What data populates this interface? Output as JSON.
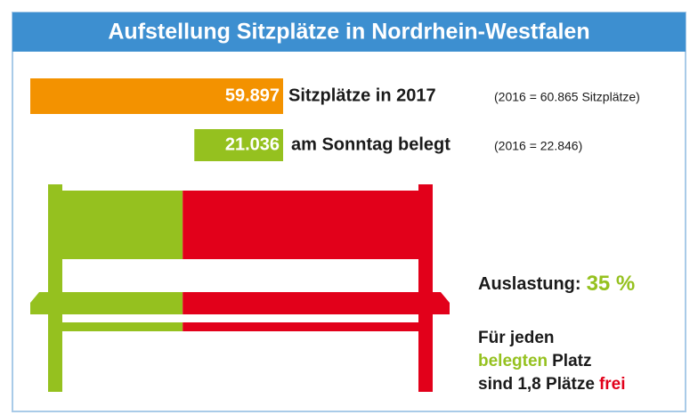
{
  "header": {
    "title": "Aufstellung Sitzplätze in Nordrhein-Westfalen"
  },
  "rows": [
    {
      "value": 59897,
      "value_label": "59.897",
      "label": "Sitzplätze in 2017",
      "note": "(2016 = 60.865 Sitzplätze)",
      "color": "#f39200"
    },
    {
      "value": 21036,
      "value_label": "21.036",
      "label": "am Sonntag belegt",
      "note": "(2016 = 22.846)",
      "color": "#95c11f"
    }
  ],
  "utilization": {
    "label": "Auslastung:",
    "value": 35,
    "value_label": "35 %",
    "color_used": "#95c11f",
    "color_free": "#e2001a"
  },
  "summary": {
    "lines": [
      [
        {
          "text": "Für jeden",
          "color": "#1a1a1a"
        }
      ],
      [
        {
          "text": "belegten",
          "color": "#95c11f"
        },
        {
          "text": "Platz",
          "color": "#1a1a1a"
        }
      ],
      [
        {
          "text": "sind 1,8 Plätze",
          "color": "#1a1a1a"
        },
        {
          "text": "frei",
          "color": "#e2001a"
        }
      ]
    ]
  }
}
